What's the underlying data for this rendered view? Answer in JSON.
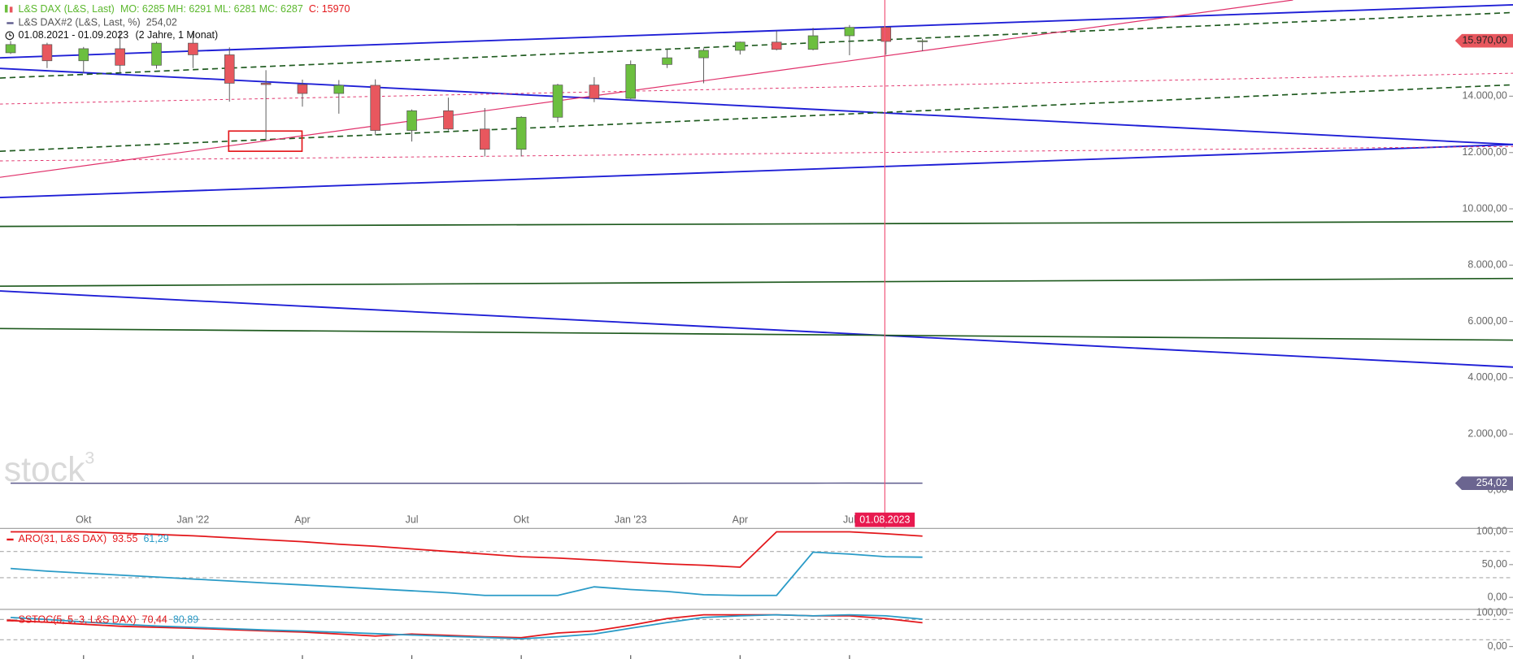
{
  "chart_data": [
    {
      "type": "candlestick",
      "legend_stats": "MO: 6285 MH: 6291 ML: 6281 MC: 6287",
      "legend_last": "C: 15970",
      "period": "01.08.2021 - 01.09.2023",
      "period_note": "(2 Jahre, 1 Monat)",
      "watermark": "stock",
      "watermark_sup": "3",
      "crosshair_label": "01.08.2023",
      "categories": [
        null,
        null,
        "Okt",
        null,
        null,
        "Jan '22",
        null,
        null,
        "Apr",
        null,
        null,
        "Jul",
        null,
        null,
        "Okt",
        null,
        null,
        "Jan '23",
        null,
        null,
        "Apr",
        null,
        null,
        "Jul",
        null,
        null
      ],
      "series": [
        {
          "name": "L&S DAX (L&S, Last)",
          "up_color": "#6cbf3f",
          "down_color": "#e8575e",
          "open": [
            15544,
            15835,
            15260,
            15688,
            15100,
            15885,
            15471,
            14461,
            14415,
            14098,
            14388,
            12784,
            13484,
            12835,
            12114,
            13253,
            14397,
            13924,
            15128,
            15365,
            15629,
            15922,
            15664,
            16148,
            16447,
            15970
          ],
          "high": [
            15960,
            15900,
            15750,
            16290,
            15940,
            16285,
            15736,
            14925,
            14590,
            14575,
            14600,
            13530,
            13950,
            13580,
            13290,
            14440,
            14680,
            15270,
            15660,
            15700,
            15940,
            16330,
            16430,
            16530,
            16470,
            16040
          ],
          "low": [
            15500,
            15000,
            14820,
            14830,
            14980,
            15000,
            13807,
            12439,
            13630,
            13380,
            12620,
            12390,
            12780,
            11860,
            11860,
            13080,
            13790,
            13900,
            15000,
            14460,
            15480,
            15630,
            15630,
            15456,
            15470,
            15600
          ],
          "close": [
            15835,
            15260,
            15688,
            15100,
            15885,
            15471,
            14461,
            14415,
            14098,
            14388,
            12784,
            13484,
            12835,
            12114,
            13253,
            14397,
            13924,
            15128,
            15365,
            15629,
            15922,
            15664,
            16148,
            16447,
            15947,
            15970
          ],
          "last_label": "15.970,00"
        },
        {
          "name": "L&S DAX#2 (L&S, Last, %)",
          "color": "#5c5a8c",
          "values": [
            254,
            254,
            253,
            253,
            252,
            252,
            251,
            251,
            252,
            252,
            251,
            250,
            251,
            252,
            253,
            253,
            252,
            253,
            253,
            254,
            254,
            255,
            256,
            258,
            255,
            254.02
          ],
          "last_label": "254,02"
        }
      ],
      "ylim": [
        -1268,
        17418
      ],
      "yticks": [
        {
          "value": 0,
          "label": "0,00"
        },
        {
          "value": 2000,
          "label": "2.000,00"
        },
        {
          "value": 4000,
          "label": "4.000,00"
        },
        {
          "value": 6000,
          "label": "6.000,00"
        },
        {
          "value": 8000,
          "label": "8.000,00"
        },
        {
          "value": 10000,
          "label": "10.000,00"
        },
        {
          "value": 12000,
          "label": "12.000,00"
        },
        {
          "value": 14000,
          "label": "14.000,00"
        }
      ]
    },
    {
      "type": "line",
      "indicator": "ARO(31, L&S DAX)",
      "series": [
        {
          "color": "#e3171b",
          "values": [
            100,
            100,
            100,
            98,
            96,
            94,
            91,
            88,
            85,
            81,
            78,
            74,
            70,
            66,
            62,
            60,
            57,
            54,
            51,
            49,
            46,
            100,
            100,
            100,
            97,
            93.55
          ],
          "last_label": "93.55"
        },
        {
          "color": "#2a9bc7",
          "values": [
            44,
            40,
            37,
            34,
            31,
            28,
            25,
            22,
            19,
            16,
            13,
            10,
            7,
            3,
            3,
            3,
            16,
            12,
            9,
            4,
            3,
            3,
            69,
            66,
            62,
            61.29
          ],
          "last_label": "61,29"
        }
      ],
      "levels": [
        70,
        30
      ],
      "ylim": [
        -17.6,
        104.4
      ],
      "yticks": [
        {
          "value": 100,
          "label": "100,00"
        },
        {
          "value": 50,
          "label": "50,00"
        },
        {
          "value": 0,
          "label": "0,00"
        }
      ]
    },
    {
      "type": "line",
      "indicator": "SSTOC(5, 5, 3, L&S DAX)",
      "series": [
        {
          "color": "#e3171b",
          "values": [
            77,
            72,
            66,
            60,
            57,
            54,
            50,
            46,
            43,
            37,
            31,
            37,
            33,
            29,
            26,
            40,
            46,
            63,
            83,
            94,
            94,
            94,
            91,
            91,
            83,
            70.44
          ],
          "last_label": "70,44"
        },
        {
          "color": "#2a9bc7",
          "values": [
            86,
            80,
            73,
            66,
            61,
            57,
            53,
            49,
            46,
            42,
            38,
            34,
            30,
            27,
            23,
            29,
            37,
            54,
            71,
            86,
            91,
            94,
            91,
            94,
            91,
            80.89
          ],
          "last_label": "80,89"
        }
      ],
      "levels": [
        80,
        20
      ],
      "ylim": [
        -37.1,
        108.6
      ],
      "yticks": [
        {
          "value": 100,
          "label": "100,00"
        },
        {
          "value": 0,
          "label": "0,00"
        }
      ]
    }
  ]
}
